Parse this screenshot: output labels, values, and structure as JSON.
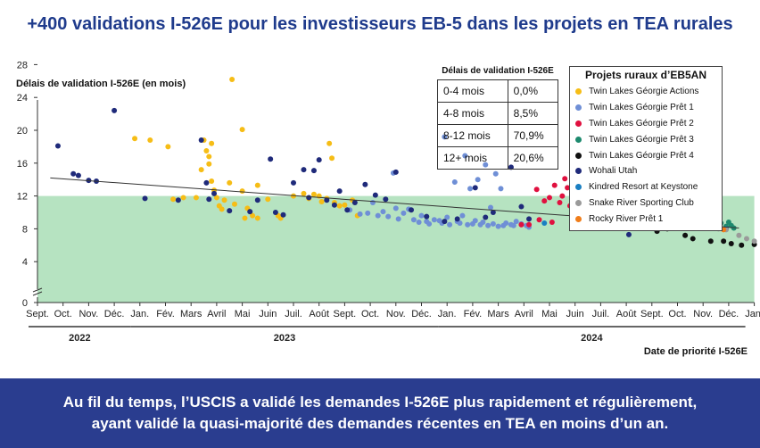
{
  "title": "+400 validations I-526E pour les investisseurs EB-5 dans les projets en TEA rurales",
  "footer": {
    "line1": "Au fil du temps, l’USCIS a validé les demandes I-526E plus rapidement et régulièrement,",
    "line2": "ayant validé la quasi-majorité des demandes récentes en TEA en moins d’un an."
  },
  "table": {
    "title": "Délais de validation I-526E",
    "rows": [
      {
        "range": "0-4 mois",
        "pct": "0,0%"
      },
      {
        "range": "4-8 mois",
        "pct": "8,5%"
      },
      {
        "range": "8-12 mois",
        "pct": "70,9%"
      },
      {
        "range": "12+ mois",
        "pct": "20,6%"
      }
    ]
  },
  "chart_data": {
    "type": "scatter",
    "ylabel": "Délais de validation I-526E (en mois)",
    "xlabel": "Date de priorité I-526E",
    "yticks": [
      0,
      4,
      8,
      12,
      16,
      20,
      24,
      28
    ],
    "ylim": [
      0,
      28
    ],
    "y_axis_break": true,
    "band": {
      "from": 0,
      "to": 12,
      "color": "#b6e3c1"
    },
    "xticks": [
      "Sept.",
      "Oct.",
      "Nov.",
      "Déc.",
      "Jan.",
      "Fév.",
      "Mars",
      "Avril",
      "Mai",
      "Juin",
      "Juil.",
      "Août",
      "Sept.",
      "Oct.",
      "Nov.",
      "Déc.",
      "Jan.",
      "Fév.",
      "Mars",
      "Avril",
      "Mai",
      "Juin",
      "Juil.",
      "Août",
      "Sept.",
      "Oct.",
      "Nov.",
      "Déc.",
      "Jan."
    ],
    "years": [
      {
        "label": "2022",
        "from": 0,
        "to": 4
      },
      {
        "label": "2023",
        "from": 4,
        "to": 16
      },
      {
        "label": "2024",
        "from": 16,
        "to": 28
      }
    ],
    "x_units": "months since Sept. 2022 (0 = Sept. 2022, 28 = Jan. 2025)",
    "trend": {
      "x": [
        0.5,
        27.4
      ],
      "y": [
        14.2,
        8.1
      ],
      "color": "#333333"
    },
    "legend_title": "Projets ruraux d’EB5AN",
    "series": [
      {
        "name": "Twin Lakes Géorgie Actions",
        "color": "#f6bd16",
        "points": [
          [
            3.8,
            19
          ],
          [
            4.4,
            18.8
          ],
          [
            5.1,
            18
          ],
          [
            5.7,
            11.8
          ],
          [
            5.3,
            11.6
          ],
          [
            6.2,
            11.8
          ],
          [
            6.5,
            18.8
          ],
          [
            6.6,
            17.5
          ],
          [
            6.7,
            16.8
          ],
          [
            6.7,
            15.9
          ],
          [
            6.4,
            15.2
          ],
          [
            6.8,
            18.4
          ],
          [
            6.8,
            13.8
          ],
          [
            6.9,
            12.7
          ],
          [
            7.0,
            11.8
          ],
          [
            7.1,
            10.8
          ],
          [
            7.2,
            10.4
          ],
          [
            7.3,
            11.5
          ],
          [
            7.5,
            13.6
          ],
          [
            7.6,
            26.2
          ],
          [
            7.7,
            11.0
          ],
          [
            8.0,
            12.6
          ],
          [
            8.0,
            20.1
          ],
          [
            8.2,
            10.5
          ],
          [
            8.1,
            9.3
          ],
          [
            8.4,
            9.6
          ],
          [
            8.6,
            13.3
          ],
          [
            8.6,
            9.3
          ],
          [
            9.0,
            11.6
          ],
          [
            9.4,
            9.6
          ],
          [
            9.5,
            9.3
          ],
          [
            10.0,
            12.0
          ],
          [
            10.4,
            12.3
          ],
          [
            10.6,
            11.7
          ],
          [
            10.8,
            12.2
          ],
          [
            11.0,
            12.0
          ],
          [
            11.1,
            11.3
          ],
          [
            11.3,
            11.7
          ],
          [
            11.4,
            18.4
          ],
          [
            11.5,
            16.6
          ],
          [
            11.6,
            11.2
          ],
          [
            11.8,
            10.8
          ],
          [
            12.0,
            10.9
          ],
          [
            12.3,
            11.5
          ],
          [
            12.5,
            9.6
          ]
        ]
      },
      {
        "name": "Twin Lakes Géorgie Prêt 1",
        "color": "#6f8fd6",
        "points": [
          [
            12.2,
            10.3
          ],
          [
            12.6,
            9.8
          ],
          [
            12.9,
            9.9
          ],
          [
            13.1,
            11.2
          ],
          [
            13.3,
            9.6
          ],
          [
            13.5,
            10.1
          ],
          [
            13.7,
            9.5
          ],
          [
            13.9,
            14.8
          ],
          [
            14.0,
            10.5
          ],
          [
            14.1,
            9.2
          ],
          [
            14.3,
            9.9
          ],
          [
            14.5,
            10.4
          ],
          [
            14.7,
            9.1
          ],
          [
            14.9,
            8.8
          ],
          [
            15.0,
            9.6
          ],
          [
            15.2,
            8.9
          ],
          [
            15.3,
            8.6
          ],
          [
            15.5,
            9.1
          ],
          [
            15.7,
            9.0
          ],
          [
            15.8,
            8.7
          ],
          [
            15.9,
            19.2
          ],
          [
            16.0,
            9.4
          ],
          [
            16.1,
            8.5
          ],
          [
            16.3,
            13.7
          ],
          [
            16.4,
            8.9
          ],
          [
            16.5,
            8.7
          ],
          [
            16.6,
            9.6
          ],
          [
            16.7,
            16.9
          ],
          [
            16.8,
            8.5
          ],
          [
            16.9,
            12.9
          ],
          [
            17.0,
            8.6
          ],
          [
            17.1,
            9.0
          ],
          [
            17.2,
            14.0
          ],
          [
            17.3,
            8.5
          ],
          [
            17.4,
            8.8
          ],
          [
            17.5,
            15.8
          ],
          [
            17.6,
            8.4
          ],
          [
            17.7,
            10.6
          ],
          [
            17.8,
            8.6
          ],
          [
            17.9,
            14.7
          ],
          [
            18.0,
            8.3
          ],
          [
            18.1,
            12.9
          ],
          [
            18.2,
            8.4
          ],
          [
            18.3,
            8.7
          ],
          [
            18.5,
            8.5
          ],
          [
            18.6,
            8.4
          ],
          [
            18.7,
            8.9
          ],
          [
            18.9,
            8.6
          ],
          [
            19.1,
            8.4
          ],
          [
            19.2,
            8.2
          ]
        ]
      },
      {
        "name": "Twin Lakes Géorgie Prêt 2",
        "color": "#e0103f",
        "points": [
          [
            18.9,
            8.5
          ],
          [
            19.2,
            8.5
          ],
          [
            19.5,
            12.8
          ],
          [
            19.6,
            9.1
          ],
          [
            19.8,
            11.4
          ],
          [
            20.0,
            11.8
          ],
          [
            20.1,
            8.8
          ],
          [
            20.2,
            13.3
          ],
          [
            20.4,
            11.2
          ],
          [
            20.5,
            12.0
          ],
          [
            20.6,
            14.1
          ],
          [
            20.7,
            13.0
          ],
          [
            20.8,
            10.8
          ],
          [
            20.9,
            11.8
          ],
          [
            21.0,
            13.6
          ],
          [
            21.1,
            15.0
          ],
          [
            21.2,
            11.6
          ],
          [
            21.3,
            12.7
          ],
          [
            21.4,
            14.4
          ],
          [
            21.5,
            11.1
          ],
          [
            21.6,
            13.3
          ],
          [
            21.7,
            11.9
          ],
          [
            21.8,
            15.0
          ],
          [
            21.9,
            12.5
          ],
          [
            22.0,
            14.3
          ],
          [
            22.1,
            11.7
          ],
          [
            22.2,
            13.8
          ],
          [
            22.3,
            11.3
          ],
          [
            22.4,
            12.9
          ],
          [
            22.5,
            14.8
          ],
          [
            22.6,
            11.4
          ],
          [
            22.7,
            12.0
          ]
        ]
      },
      {
        "name": "Twin Lakes Géorgie Prêt 3",
        "color": "#1d8a6e",
        "points": [
          [
            22.0,
            11.6
          ],
          [
            22.3,
            11.1
          ],
          [
            22.5,
            11.8
          ],
          [
            22.7,
            12.0
          ],
          [
            22.9,
            11.6
          ],
          [
            23.1,
            10.9
          ],
          [
            23.3,
            11.5
          ],
          [
            23.5,
            10.4
          ],
          [
            23.7,
            12.1
          ],
          [
            23.9,
            10.7
          ],
          [
            24.1,
            11.3
          ],
          [
            24.3,
            10.5
          ],
          [
            24.5,
            9.7
          ],
          [
            24.7,
            11.2
          ],
          [
            24.9,
            10.3
          ],
          [
            25.1,
            9.8
          ],
          [
            25.3,
            11.0
          ],
          [
            25.5,
            9.2
          ],
          [
            25.7,
            9.9
          ],
          [
            25.9,
            8.9
          ],
          [
            26.1,
            9.4
          ],
          [
            26.3,
            8.5
          ],
          [
            26.5,
            9.6
          ],
          [
            26.7,
            8.7
          ],
          [
            26.9,
            8.3
          ],
          [
            27.0,
            8.8
          ],
          [
            27.1,
            8.4
          ],
          [
            27.2,
            8.1
          ]
        ]
      },
      {
        "name": "Twin Lakes Géorgie Prêt 4",
        "color": "#111111",
        "points": [
          [
            24.2,
            7.7
          ],
          [
            24.6,
            8.0
          ],
          [
            25.3,
            7.2
          ],
          [
            25.6,
            6.8
          ],
          [
            26.3,
            6.5
          ],
          [
            26.8,
            6.5
          ],
          [
            27.1,
            6.2
          ],
          [
            27.5,
            6.0
          ],
          [
            28.0,
            6.1
          ]
        ]
      },
      {
        "name": "Wohali Utah",
        "color": "#1f2a7a",
        "points": [
          [
            0.8,
            18.1
          ],
          [
            1.4,
            14.7
          ],
          [
            1.6,
            14.5
          ],
          [
            2.0,
            13.9
          ],
          [
            2.3,
            13.8
          ],
          [
            3.0,
            22.4
          ],
          [
            4.2,
            11.7
          ],
          [
            5.5,
            11.5
          ],
          [
            6.4,
            18.8
          ],
          [
            6.6,
            13.6
          ],
          [
            6.7,
            11.6
          ],
          [
            6.9,
            12.3
          ],
          [
            7.5,
            10.2
          ],
          [
            8.3,
            10.1
          ],
          [
            8.6,
            11.5
          ],
          [
            9.1,
            16.5
          ],
          [
            9.3,
            10.0
          ],
          [
            9.6,
            9.7
          ],
          [
            10.0,
            13.6
          ],
          [
            10.4,
            15.2
          ],
          [
            10.6,
            11.8
          ],
          [
            10.8,
            15.1
          ],
          [
            11.0,
            16.4
          ],
          [
            11.3,
            11.5
          ],
          [
            11.6,
            10.9
          ],
          [
            11.8,
            12.6
          ],
          [
            12.1,
            10.3
          ],
          [
            12.4,
            11.2
          ],
          [
            12.8,
            13.4
          ],
          [
            13.2,
            12.1
          ],
          [
            13.6,
            11.6
          ],
          [
            14.0,
            14.9
          ],
          [
            14.6,
            10.3
          ],
          [
            15.2,
            9.5
          ],
          [
            15.9,
            8.9
          ],
          [
            16.4,
            9.2
          ],
          [
            17.1,
            13.0
          ],
          [
            17.5,
            9.4
          ],
          [
            17.8,
            10.0
          ],
          [
            18.5,
            15.5
          ],
          [
            18.9,
            10.7
          ],
          [
            19.2,
            9.2
          ],
          [
            21.6,
            13.4
          ],
          [
            22.1,
            14.3
          ],
          [
            22.5,
            11.4
          ],
          [
            23.1,
            7.3
          ],
          [
            23.8,
            11.4
          ],
          [
            24.3,
            8.9
          ],
          [
            24.8,
            9.8
          ],
          [
            25.3,
            10.0
          ],
          [
            26.1,
            9.5
          ]
        ]
      },
      {
        "name": "Kindred Resort at Keystone",
        "color": "#1a7fc2",
        "points": [
          [
            19.8,
            8.7
          ],
          [
            21.2,
            12.1
          ],
          [
            21.7,
            13.3
          ],
          [
            22.3,
            12.4
          ],
          [
            22.8,
            11.2
          ],
          [
            23.6,
            11.1
          ],
          [
            24.2,
            10.0
          ],
          [
            24.6,
            9.4
          ],
          [
            25.0,
            9.2
          ],
          [
            25.7,
            8.6
          ],
          [
            26.4,
            8.3
          ],
          [
            26.9,
            8.0
          ]
        ]
      },
      {
        "name": "Snake River Sporting Club",
        "color": "#9a9a9a",
        "points": [
          [
            26.6,
            8.0
          ],
          [
            26.9,
            7.9
          ],
          [
            27.4,
            7.2
          ],
          [
            27.7,
            6.8
          ],
          [
            28.0,
            6.5
          ],
          [
            28.4,
            6.1
          ],
          [
            28.8,
            5.8
          ],
          [
            29.1,
            5.8
          ]
        ]
      },
      {
        "name": "Rocky River Prêt 1",
        "color": "#f07d1a",
        "points": [
          [
            26.2,
            8.4
          ],
          [
            26.5,
            8.1
          ],
          [
            26.8,
            7.9
          ]
        ]
      }
    ]
  }
}
